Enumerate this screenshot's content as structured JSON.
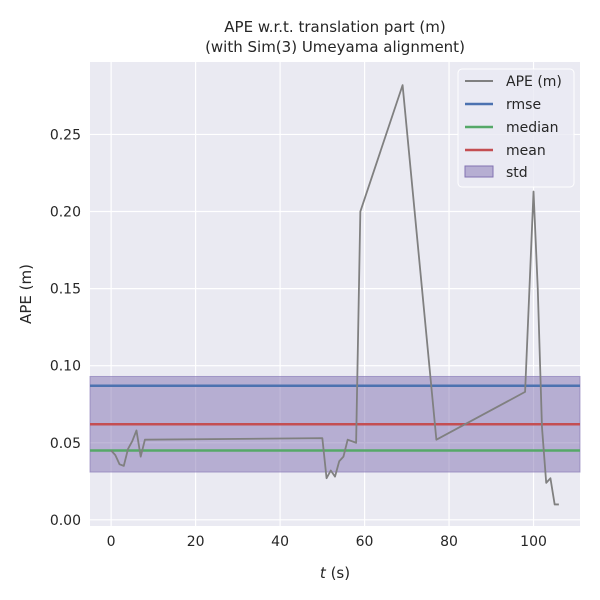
{
  "chart_data": {
    "type": "line",
    "title": "APE w.r.t. translation part (m)",
    "subtitle": "(with Sim(3) Umeyama alignment)",
    "xlabel_var": "t",
    "xlabel_unit": " (s)",
    "ylabel": "APE (m)",
    "xlim": [
      -5,
      111
    ],
    "ylim": [
      -0.004,
      0.297
    ],
    "x_ticks": [
      0,
      20,
      40,
      60,
      80,
      100
    ],
    "y_ticks": [
      0.0,
      0.05,
      0.1,
      0.15,
      0.2,
      0.25
    ],
    "y_tick_labels": [
      "0.00",
      "0.05",
      "0.10",
      "0.15",
      "0.20",
      "0.25"
    ],
    "grid": true,
    "legend_position": "top-right",
    "series": [
      {
        "name": "APE (m)",
        "color": "#808080",
        "x": [
          0,
          1,
          2,
          3,
          4,
          5,
          6,
          7,
          8,
          50,
          51,
          52,
          53,
          54,
          55,
          56,
          58,
          59,
          69,
          77,
          98,
          100,
          101,
          102,
          103,
          104,
          105,
          106
        ],
        "y": [
          0.045,
          0.042,
          0.036,
          0.035,
          0.046,
          0.051,
          0.058,
          0.041,
          0.052,
          0.053,
          0.027,
          0.032,
          0.028,
          0.038,
          0.041,
          0.052,
          0.05,
          0.2,
          0.282,
          0.052,
          0.083,
          0.213,
          0.15,
          0.06,
          0.024,
          0.027,
          0.01,
          0.01
        ]
      }
    ],
    "stats": {
      "rmse": {
        "name": "rmse",
        "value": 0.087,
        "color": "#4c72b0"
      },
      "median": {
        "name": "median",
        "value": 0.045,
        "color": "#55a868"
      },
      "mean": {
        "name": "mean",
        "value": 0.062,
        "color": "#c44e52"
      },
      "std": {
        "name": "std",
        "value": 0.031,
        "color": "#8172b2"
      }
    }
  }
}
